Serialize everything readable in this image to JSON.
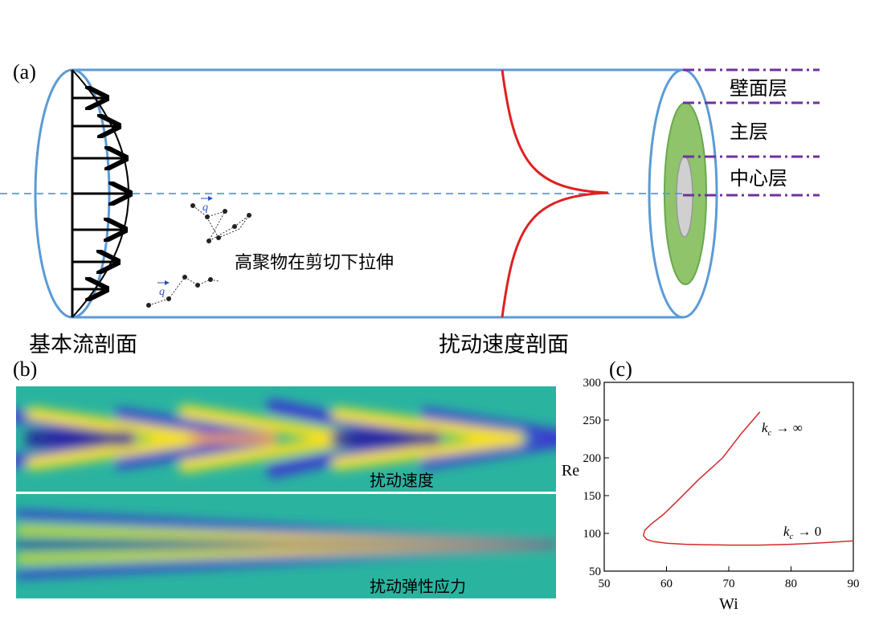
{
  "panel_a": {
    "label": "(a)",
    "layers": [
      "壁面层",
      "主层",
      "中心层"
    ],
    "polymer_label": "高聚物在剪切下拉伸",
    "base_flow_label": "基本流剖面",
    "perturbation_label": "扰动速度剖面",
    "vector_labels": [
      "q",
      "q"
    ]
  },
  "panel_b": {
    "label": "(b)",
    "captions": [
      "扰动速度",
      "扰动弹性应力"
    ]
  },
  "panel_c": {
    "label": "(c)"
  },
  "chart_data": {
    "type": "line",
    "xlabel": "Wi",
    "ylabel": "Re",
    "xlim": [
      50,
      90
    ],
    "ylim": [
      50,
      300
    ],
    "xticks": [
      50,
      60,
      70,
      80,
      90
    ],
    "yticks": [
      50,
      100,
      150,
      200,
      250,
      300
    ],
    "annotations": [
      {
        "base": "k",
        "sub": "c",
        "rest": "→ ∞"
      },
      {
        "base": "k",
        "sub": "c",
        "rest": "→ 0"
      }
    ],
    "series": [
      {
        "color": "#d42a2a",
        "x": [
          75,
          72,
          69,
          65,
          62,
          59.5,
          57.5,
          56.5,
          56.3,
          56.8,
          58,
          60,
          63,
          66,
          70,
          75,
          80,
          85,
          90
        ],
        "values": [
          261,
          232,
          200,
          170,
          145,
          125,
          112,
          104,
          97,
          92,
          89,
          87,
          85.5,
          85,
          84.5,
          84.5,
          85.5,
          87.5,
          90
        ]
      }
    ]
  }
}
